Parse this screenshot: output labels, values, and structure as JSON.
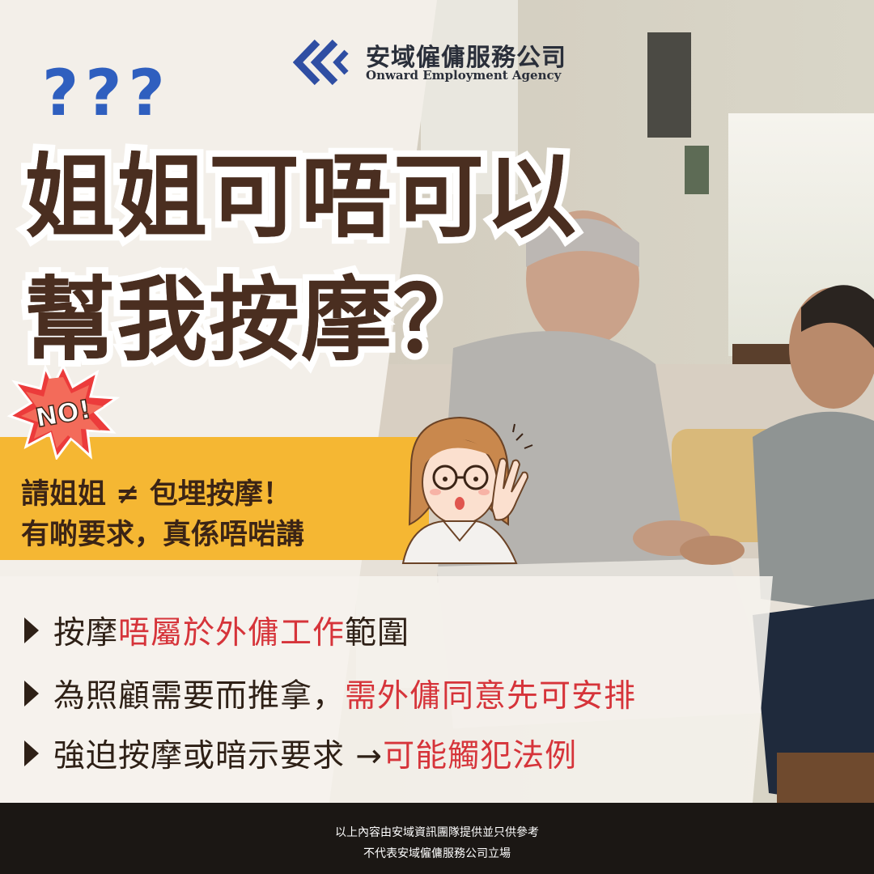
{
  "logo": {
    "name_zh": "安域僱傭服務公司",
    "name_en": "Onward Employment Agency"
  },
  "decor": {
    "question_marks": "???",
    "no_badge": "NO!"
  },
  "headline": {
    "line1": "姐姐可唔可以",
    "line2": "幫我按摩？"
  },
  "banner": {
    "line1": "請姐姐 ≠ 包埋按摩！",
    "line2": "有啲要求，真係唔啱講"
  },
  "points": [
    {
      "pre": "按摩",
      "red": "唔屬於外傭工作",
      "post": "範圍"
    },
    {
      "pre": "為照顧需要而推拿，",
      "red": "需外傭同意先可安排",
      "post": ""
    },
    {
      "pre": "強迫按摩或暗示要求 → ",
      "red": "可能觸犯法例",
      "post": ""
    }
  ],
  "footer": {
    "line1": "以上內容由安域資訊團隊提供並只供參考",
    "line2": "不代表安域僱傭服務公司立場"
  },
  "colors": {
    "headline": "#4a2e20",
    "banner_bg": "#f5b733",
    "accent_red": "#d6343a",
    "logo_blue": "#2f4ea3",
    "question_blue": "#2f5fbf"
  }
}
